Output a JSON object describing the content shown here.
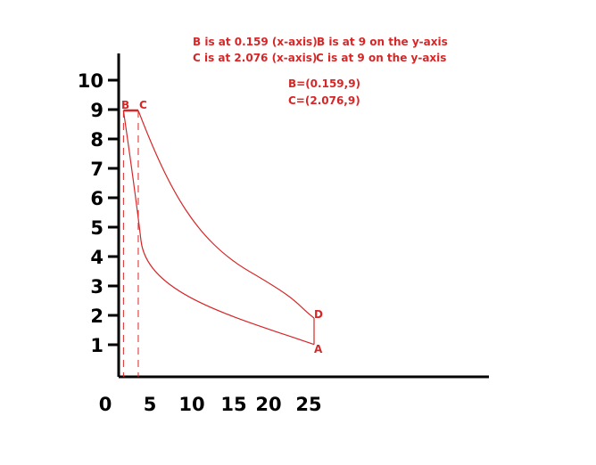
{
  "chart_data": {
    "type": "line",
    "xlabel": "",
    "ylabel": "",
    "x_ticks": [
      "0",
      "5",
      "10",
      "15",
      "20",
      "25"
    ],
    "y_ticks": [
      "1",
      "2",
      "3",
      "4",
      "5",
      "6",
      "7",
      "8",
      "9",
      "10"
    ],
    "xlim": [
      0,
      38
    ],
    "ylim": [
      0,
      10
    ],
    "points": [
      {
        "label": "A",
        "x": 25,
        "y": 1.1
      },
      {
        "label": "B",
        "x": 0.159,
        "y": 9
      },
      {
        "label": "C",
        "x": 2.076,
        "y": 9
      },
      {
        "label": "D",
        "x": 25,
        "y": 2
      }
    ],
    "series": [
      {
        "type": "curve",
        "from": "A",
        "to": "B"
      },
      {
        "type": "line",
        "from": "B",
        "to": "C"
      },
      {
        "type": "curve",
        "from": "C",
        "to": "D"
      },
      {
        "type": "line",
        "from": "D",
        "to": "A"
      }
    ],
    "dashed_drops": [
      "B",
      "C"
    ],
    "color": "#d62728"
  },
  "annotations": {
    "note1a": "B is at 0.159 (x-axis)",
    "note1b": "B is at 9 on the y-axis",
    "note2a": "C is at 2.076 (x-axis)",
    "note2b": "C is at 9 on the y-axis",
    "coordB": "B=(0.159,9)",
    "coordC": "C=(2.076,9)"
  }
}
